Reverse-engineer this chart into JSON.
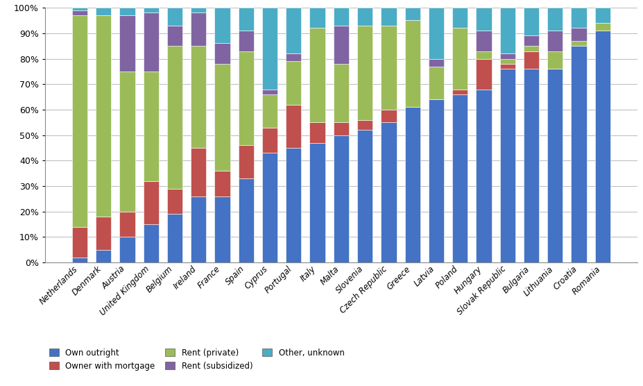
{
  "countries": [
    "Netherlands",
    "Denmark",
    "Austria",
    "United Kingdom",
    "Belgium",
    "Ireland",
    "France",
    "Spain",
    "Cyprus",
    "Portugal",
    "Italy",
    "Malta",
    "Slovenia",
    "Czech Republic",
    "Greece",
    "Latvia",
    "Poland",
    "Hungary",
    "Slovak Republic",
    "Bulgaria",
    "Lithuania",
    "Croatia",
    "Romania"
  ],
  "own_outright": [
    2,
    5,
    10,
    15,
    19,
    26,
    26,
    33,
    43,
    45,
    47,
    50,
    52,
    55,
    61,
    64,
    66,
    68,
    76,
    76,
    76,
    85,
    91
  ],
  "owner_mortgage": [
    12,
    13,
    10,
    17,
    10,
    19,
    10,
    13,
    10,
    17,
    8,
    5,
    4,
    5,
    0,
    0,
    2,
    12,
    2,
    7,
    0,
    0,
    0
  ],
  "rent_private": [
    83,
    79,
    55,
    43,
    56,
    40,
    42,
    37,
    13,
    17,
    37,
    23,
    37,
    33,
    34,
    13,
    24,
    3,
    2,
    2,
    7,
    2,
    3
  ],
  "rent_subsidized": [
    2,
    0,
    22,
    23,
    8,
    13,
    8,
    8,
    2,
    3,
    0,
    15,
    0,
    0,
    0,
    3,
    0,
    8,
    2,
    4,
    8,
    5,
    0
  ],
  "other_unknown": [
    1,
    3,
    3,
    2,
    7,
    2,
    14,
    9,
    32,
    18,
    8,
    7,
    7,
    7,
    5,
    20,
    8,
    9,
    18,
    11,
    9,
    8,
    6
  ],
  "colors": {
    "own_outright": "#4472C4",
    "owner_mortgage": "#C0504D",
    "rent_private": "#9BBB59",
    "rent_subsidized": "#8064A2",
    "other_unknown": "#4BACC6"
  },
  "legend_labels": [
    "Own outright",
    "Owner with mortgage",
    "Rent (private)",
    "Rent (subsidized)",
    "Other, unknown"
  ],
  "ylim": [
    0,
    100
  ],
  "yticks": [
    0,
    10,
    20,
    30,
    40,
    50,
    60,
    70,
    80,
    90,
    100
  ],
  "ytick_labels": [
    "0%",
    "10%",
    "20%",
    "30%",
    "40%",
    "50%",
    "60%",
    "70%",
    "80%",
    "90%",
    "100%"
  ],
  "plot_bg": "#FFFFFF",
  "grid_color": "#C0C0C0"
}
